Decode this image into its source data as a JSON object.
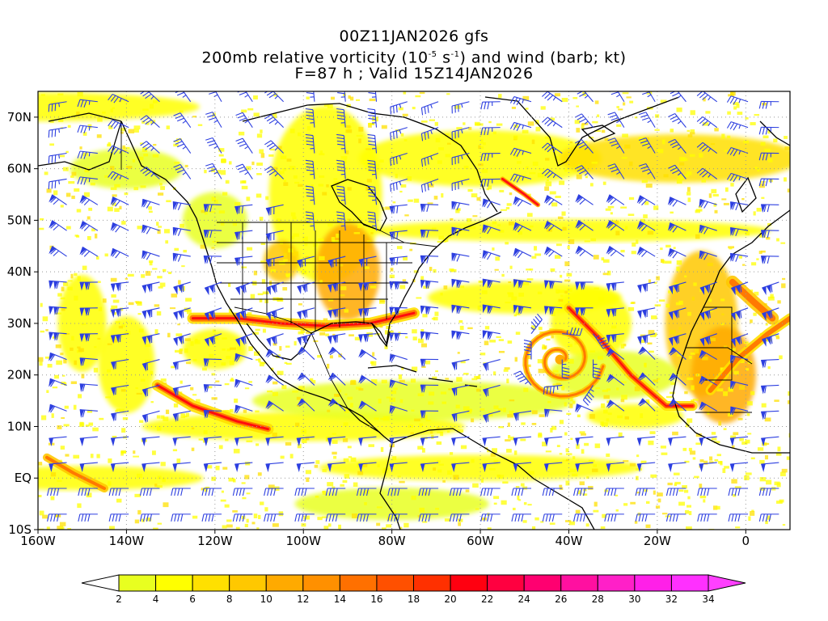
{
  "title": {
    "line1": "00Z11JAN2026 gfs",
    "line2_prefix": "200mb relative vorticity (10",
    "line2_exp1": "-5",
    "line2_mid": " s",
    "line2_exp2": "-1",
    "line2_suffix": ") and wind (barb; kt)",
    "line3": "F=87 h ; Valid 15Z14JAN2026"
  },
  "map": {
    "lon_range": [
      -160,
      10
    ],
    "lat_range": [
      -10,
      75
    ],
    "x_tick_labels": [
      "160W",
      "140W",
      "120W",
      "100W",
      "80W",
      "60W",
      "40W",
      "20W",
      "0"
    ],
    "y_tick_labels": [
      "10S",
      "EQ",
      "10N",
      "20N",
      "30N",
      "40N",
      "50N",
      "60N",
      "70N"
    ],
    "barb_color": "#2d3fe0",
    "gridlines": "dotted"
  },
  "colorbar": {
    "labels": [
      "2",
      "4",
      "6",
      "8",
      "10",
      "12",
      "14",
      "16",
      "18",
      "20",
      "22",
      "24",
      "26",
      "28",
      "30",
      "32",
      "34"
    ],
    "colors": [
      "#e8ff20",
      "#ffff00",
      "#ffe000",
      "#ffc800",
      "#ffaa00",
      "#ff9000",
      "#ff7000",
      "#ff5000",
      "#ff3000",
      "#ff0010",
      "#ff0040",
      "#ff0070",
      "#ff10a0",
      "#ff20c8",
      "#ff20e8",
      "#ff30ff"
    ],
    "low_end_color": "#ffffff",
    "high_end_color": "#ff40ff"
  },
  "features": [
    {
      "name": "subtropical-jet-band",
      "color": "#ff7000"
    },
    {
      "name": "east-pacific-jet-band",
      "color": "#ff3000"
    },
    {
      "name": "atlantic-cyclone-spiral",
      "color": "#ffa500"
    }
  ]
}
